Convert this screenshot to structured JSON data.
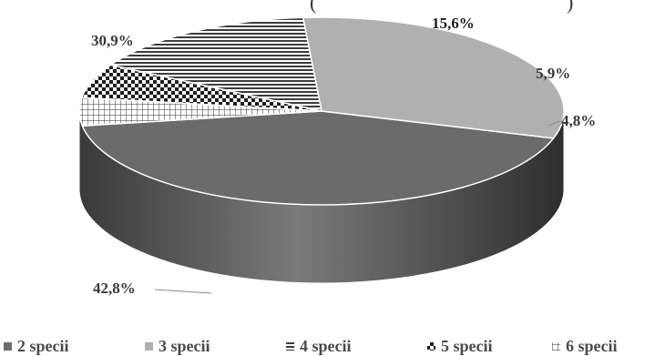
{
  "chart_data": {
    "type": "pie",
    "style": "3d",
    "categories": [
      "2 specii",
      "3 specii",
      "4 specii",
      "5 specii",
      "6 specii"
    ],
    "values": [
      42.8,
      30.9,
      15.6,
      5.9,
      4.8
    ],
    "labels": [
      "42,8%",
      "30,9%",
      "15,6%",
      "5,9%",
      "4,8%"
    ],
    "fills": [
      "solid-dark-gray",
      "solid-light-gray",
      "horizontal-lines",
      "checkerboard",
      "grid"
    ],
    "colors": [
      "#6b6b6b",
      "#b0b0b0",
      "#3c3c3c",
      "#1e1e1e",
      "#555555"
    ],
    "legend_position": "bottom",
    "title": "",
    "title_partial": "(",
    "title_partial_right": ")"
  }
}
